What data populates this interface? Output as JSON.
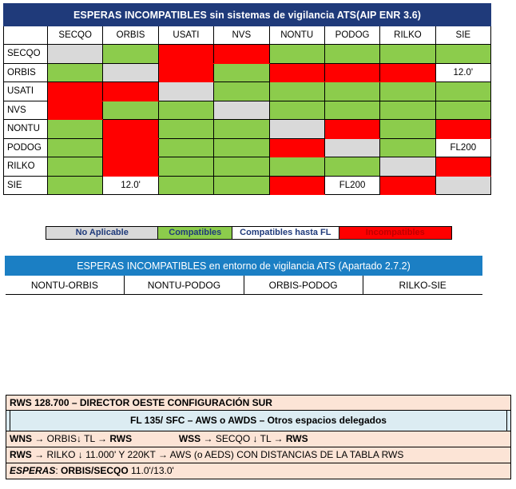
{
  "matrix": {
    "title": "ESPERAS INCOMPATIBLES sin sistemas de vigilancia ATS(AIP ENR 3.6)",
    "columns": [
      "SECQO",
      "ORBIS",
      "USATI",
      "NVS",
      "NONTU",
      "PODOG",
      "RILKO",
      "SIE"
    ],
    "rows": [
      {
        "name": "SECQO",
        "cells": [
          {
            "s": "na"
          },
          {
            "s": "ok"
          },
          {
            "s": "x"
          },
          {
            "s": "x"
          },
          {
            "s": "ok"
          },
          {
            "s": "ok"
          },
          {
            "s": "ok"
          },
          {
            "s": "ok"
          }
        ]
      },
      {
        "name": "ORBIS",
        "cells": [
          {
            "s": "ok"
          },
          {
            "s": "na"
          },
          {
            "s": "x"
          },
          {
            "s": "ok"
          },
          {
            "s": "x"
          },
          {
            "s": "x"
          },
          {
            "s": "x"
          },
          {
            "s": "fl",
            "t": "12.0'"
          }
        ]
      },
      {
        "name": "USATI",
        "cells": [
          {
            "s": "x"
          },
          {
            "s": "x"
          },
          {
            "s": "na"
          },
          {
            "s": "ok"
          },
          {
            "s": "ok"
          },
          {
            "s": "ok"
          },
          {
            "s": "ok"
          },
          {
            "s": "ok"
          }
        ]
      },
      {
        "name": "NVS",
        "cells": [
          {
            "s": "x"
          },
          {
            "s": "ok"
          },
          {
            "s": "ok"
          },
          {
            "s": "na"
          },
          {
            "s": "ok"
          },
          {
            "s": "ok"
          },
          {
            "s": "ok"
          },
          {
            "s": "ok"
          }
        ]
      },
      {
        "name": "NONTU",
        "cells": [
          {
            "s": "ok"
          },
          {
            "s": "x"
          },
          {
            "s": "ok"
          },
          {
            "s": "ok"
          },
          {
            "s": "na"
          },
          {
            "s": "x"
          },
          {
            "s": "ok"
          },
          {
            "s": "x"
          }
        ]
      },
      {
        "name": "PODOG",
        "cells": [
          {
            "s": "ok"
          },
          {
            "s": "x"
          },
          {
            "s": "ok"
          },
          {
            "s": "ok"
          },
          {
            "s": "x"
          },
          {
            "s": "na"
          },
          {
            "s": "ok"
          },
          {
            "s": "fl",
            "t": "FL200"
          }
        ]
      },
      {
        "name": "RILKO",
        "cells": [
          {
            "s": "ok"
          },
          {
            "s": "x"
          },
          {
            "s": "ok"
          },
          {
            "s": "ok"
          },
          {
            "s": "ok"
          },
          {
            "s": "ok"
          },
          {
            "s": "na"
          },
          {
            "s": "x"
          }
        ]
      },
      {
        "name": "SIE",
        "cells": [
          {
            "s": "ok"
          },
          {
            "s": "fl",
            "t": "12.0'"
          },
          {
            "s": "ok"
          },
          {
            "s": "ok"
          },
          {
            "s": "x"
          },
          {
            "s": "fl",
            "t": "FL200"
          },
          {
            "s": "x"
          },
          {
            "s": "na"
          }
        ]
      }
    ]
  },
  "legend": [
    {
      "label": "No Aplicable",
      "color": "#d9d9d9",
      "text_color": "#1f3a7a"
    },
    {
      "label": "Compatibles",
      "color": "#8ccc4c",
      "text_color": "#1f3a7a"
    },
    {
      "label": "Compatibles hasta FL",
      "color": "#ffffff",
      "text_color": "#1f3a7a"
    },
    {
      "label": "Incompatibles",
      "color": "#ff0000",
      "text_color": "#c00000"
    }
  ],
  "surveillance": {
    "title": "ESPERAS INCOMPATIBLES en entorno de vigilancia ATS (Apartado 2.7.2)",
    "pairs": [
      "NONTU-ORBIS",
      "NONTU-PODOG",
      "ORBIS-PODOG",
      "RILKO-SIE"
    ]
  },
  "rws": {
    "header": "RWS 128.700 – DIRECTOR OESTE CONFIGURACIÓN SUR",
    "band": "FL 135/ SFC – AWS o AWDS – Otros espacios delegados",
    "wns_label": "WNS",
    "wns_route": " → ORBIS↓ TL → ",
    "wns_dest": "RWS",
    "wss_label": "WSS",
    "wss_route": " → SECQO ↓ TL → ",
    "wss_dest": "RWS",
    "rws_label": "RWS",
    "rws_route": " → RILKO ↓ 11.000' Y 220KT → AWS (o AEDS) CON DISTANCIAS DE LA TABLA RWS",
    "esperas_label": "ESPERAS",
    "esperas_colon": ":  ",
    "esperas_fixes": "ORBIS/SECQO",
    "esperas_levels": " 11.0'/13.0'"
  }
}
